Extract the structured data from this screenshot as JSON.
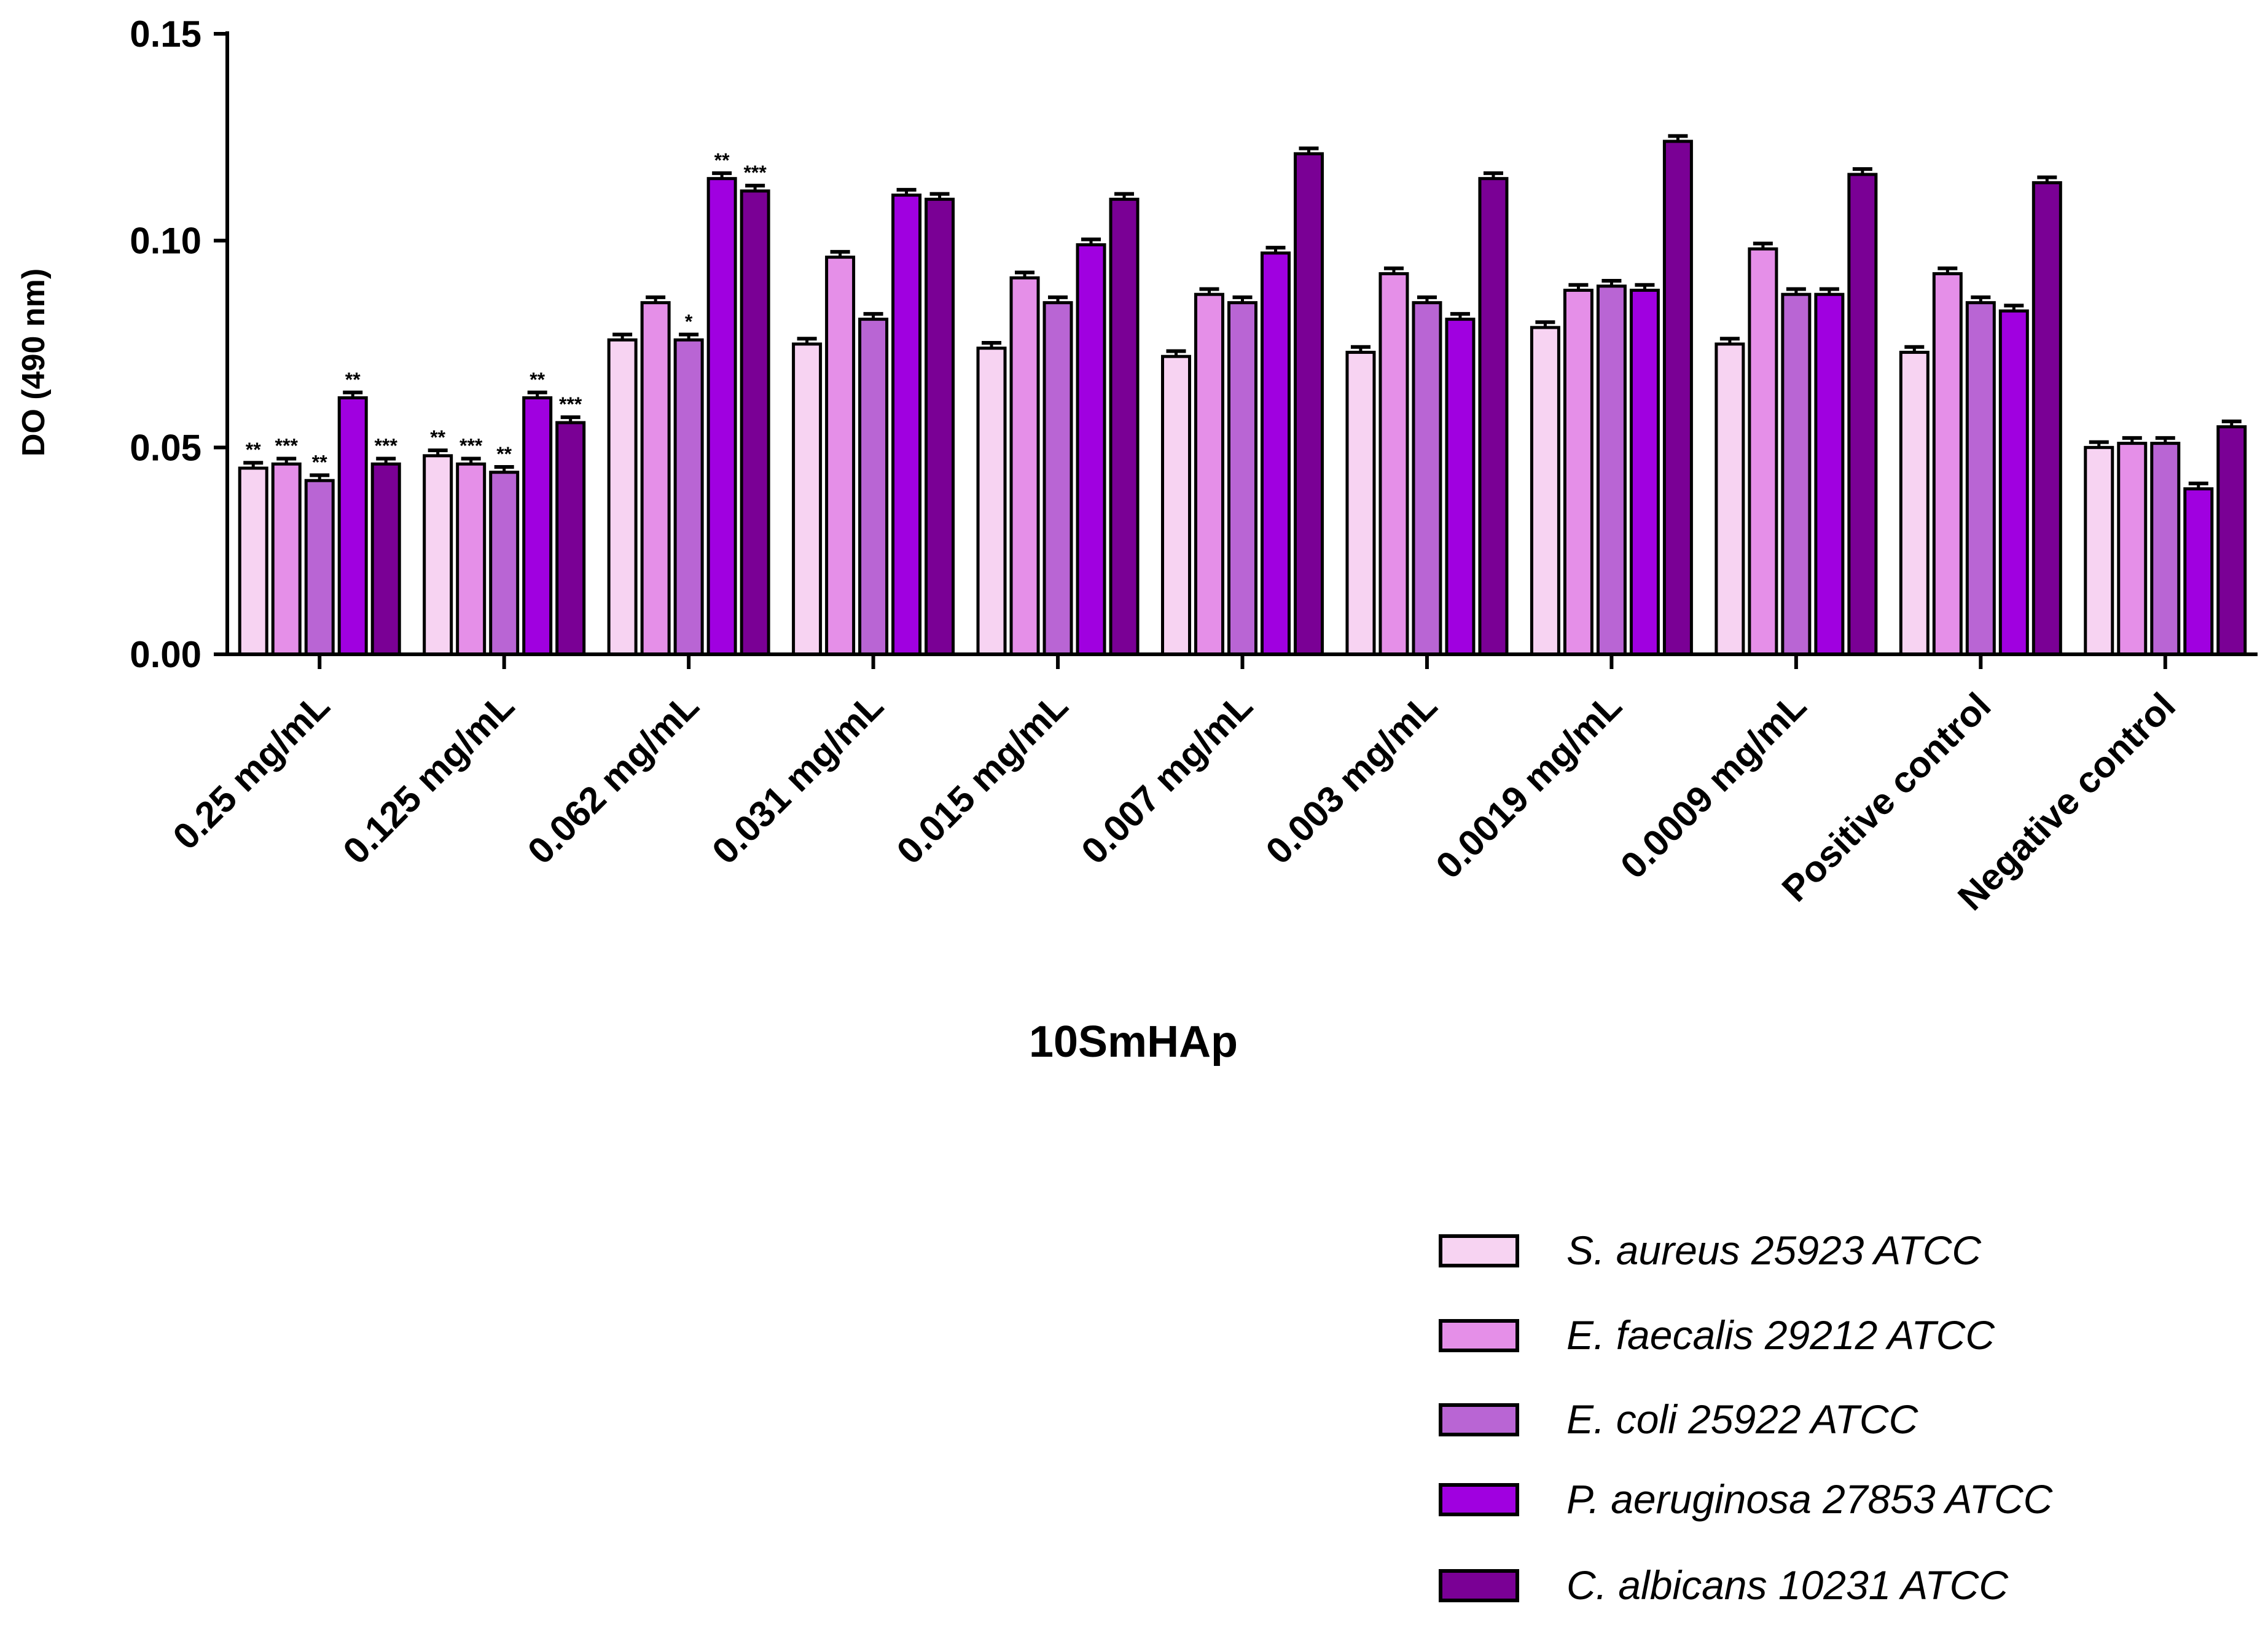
{
  "chart_data": {
    "type": "bar",
    "title": "",
    "xlabel": "10SmHAp",
    "ylabel": "DO  (490 nm)",
    "ylim": [
      0,
      0.15
    ],
    "yticks": [
      "0.00",
      "0.05",
      "0.10",
      "0.15"
    ],
    "grid": false,
    "legend_position": "bottom-right",
    "categories": [
      "0.25 mg/mL",
      "0.125 mg/mL",
      "0.062 mg/mL",
      "0.031 mg/mL",
      "0.015 mg/mL",
      "0.007 mg/mL",
      "0.003 mg/mL",
      "0.0019 mg/mL",
      "0.0009 mg/mL",
      "Positive  control",
      "Negative  control"
    ],
    "series": [
      {
        "name": "S. aureus 25923 ATCC",
        "color": "#f7d3f2",
        "values": [
          0.045,
          0.048,
          0.076,
          0.075,
          0.074,
          0.072,
          0.073,
          0.079,
          0.075,
          0.073,
          0.05
        ],
        "significance": [
          "**",
          "**",
          "",
          "",
          "",
          "",
          "",
          "",
          "",
          "",
          ""
        ]
      },
      {
        "name": "E. faecalis 29212 ATCC",
        "color": "#e58fe8",
        "values": [
          0.046,
          0.046,
          0.085,
          0.096,
          0.091,
          0.087,
          0.092,
          0.088,
          0.098,
          0.092,
          0.051
        ],
        "significance": [
          "***",
          "***",
          "",
          "",
          "",
          "",
          "",
          "",
          "",
          "",
          ""
        ]
      },
      {
        "name": "E. coli 25922 ATCC",
        "color": "#b965d4",
        "values": [
          0.042,
          0.044,
          0.076,
          0.081,
          0.085,
          0.085,
          0.085,
          0.089,
          0.087,
          0.085,
          0.051
        ],
        "significance": [
          "**",
          "**",
          "*",
          "",
          "",
          "",
          "",
          "",
          "",
          "",
          ""
        ]
      },
      {
        "name": "P. aeruginosa 27853 ATCC",
        "color": "#a000e0",
        "values": [
          0.062,
          0.062,
          0.115,
          0.111,
          0.099,
          0.097,
          0.081,
          0.088,
          0.087,
          0.083,
          0.04
        ],
        "significance": [
          "**",
          "**",
          "**",
          "",
          "",
          "",
          "",
          "",
          "",
          "",
          ""
        ]
      },
      {
        "name": "C. albicans 10231 ATCC",
        "color": "#7a0095",
        "values": [
          0.046,
          0.056,
          0.112,
          0.11,
          0.11,
          0.121,
          0.115,
          0.124,
          0.116,
          0.114,
          0.055
        ],
        "significance": [
          "***",
          "***",
          "***",
          "",
          "",
          "",
          "",
          "",
          "",
          "",
          ""
        ]
      }
    ]
  }
}
